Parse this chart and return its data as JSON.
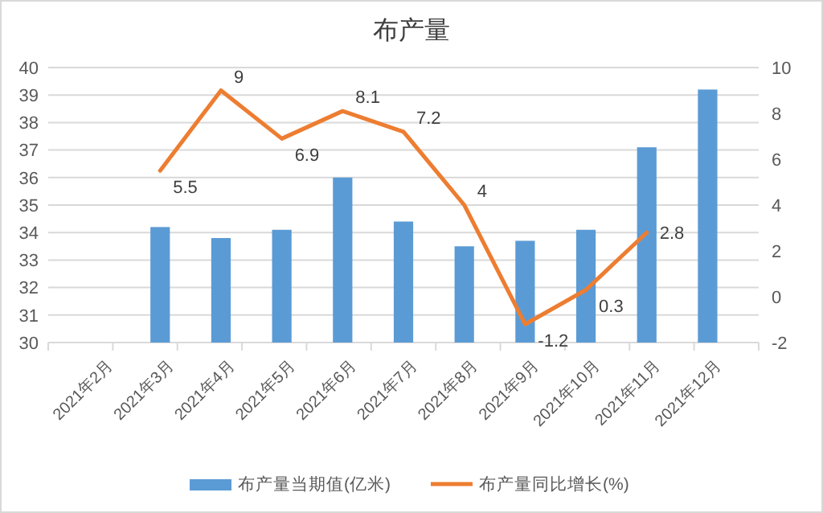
{
  "chart_data": {
    "type": "bar",
    "title": "布产量",
    "categories": [
      "2021年2月",
      "2021年3月",
      "2021年4月",
      "2021年5月",
      "2021年6月",
      "2021年7月",
      "2021年8月",
      "2021年9月",
      "2021年10月",
      "2021年11月",
      "2021年12月"
    ],
    "series": [
      {
        "name": "布产量当期值(亿米)",
        "color": "#5b9bd5",
        "values": [
          null,
          34.2,
          33.8,
          34.1,
          36.0,
          34.4,
          33.5,
          33.7,
          34.1,
          37.1,
          39.2
        ]
      },
      {
        "name": "布产量同比增长(%)",
        "type": "line",
        "axis": "y2",
        "color": "#ed7d31",
        "values": [
          null,
          5.5,
          9,
          6.9,
          8.1,
          7.2,
          4,
          -1.2,
          0.3,
          2.8,
          null
        ],
        "value_labels": [
          null,
          "5.5",
          "9",
          "6.9",
          "8.1",
          "7.2",
          "4",
          "-1.2",
          "0.3",
          "2.8",
          null
        ]
      }
    ],
    "ylim": [
      30,
      40
    ],
    "yticks": [
      30,
      31,
      32,
      33,
      34,
      35,
      36,
      37,
      38,
      39,
      40
    ],
    "y2lim": [
      -2,
      10
    ],
    "y2ticks": [
      -2,
      0,
      2,
      4,
      6,
      8,
      10
    ],
    "grid": "y",
    "legend": "bottom"
  }
}
